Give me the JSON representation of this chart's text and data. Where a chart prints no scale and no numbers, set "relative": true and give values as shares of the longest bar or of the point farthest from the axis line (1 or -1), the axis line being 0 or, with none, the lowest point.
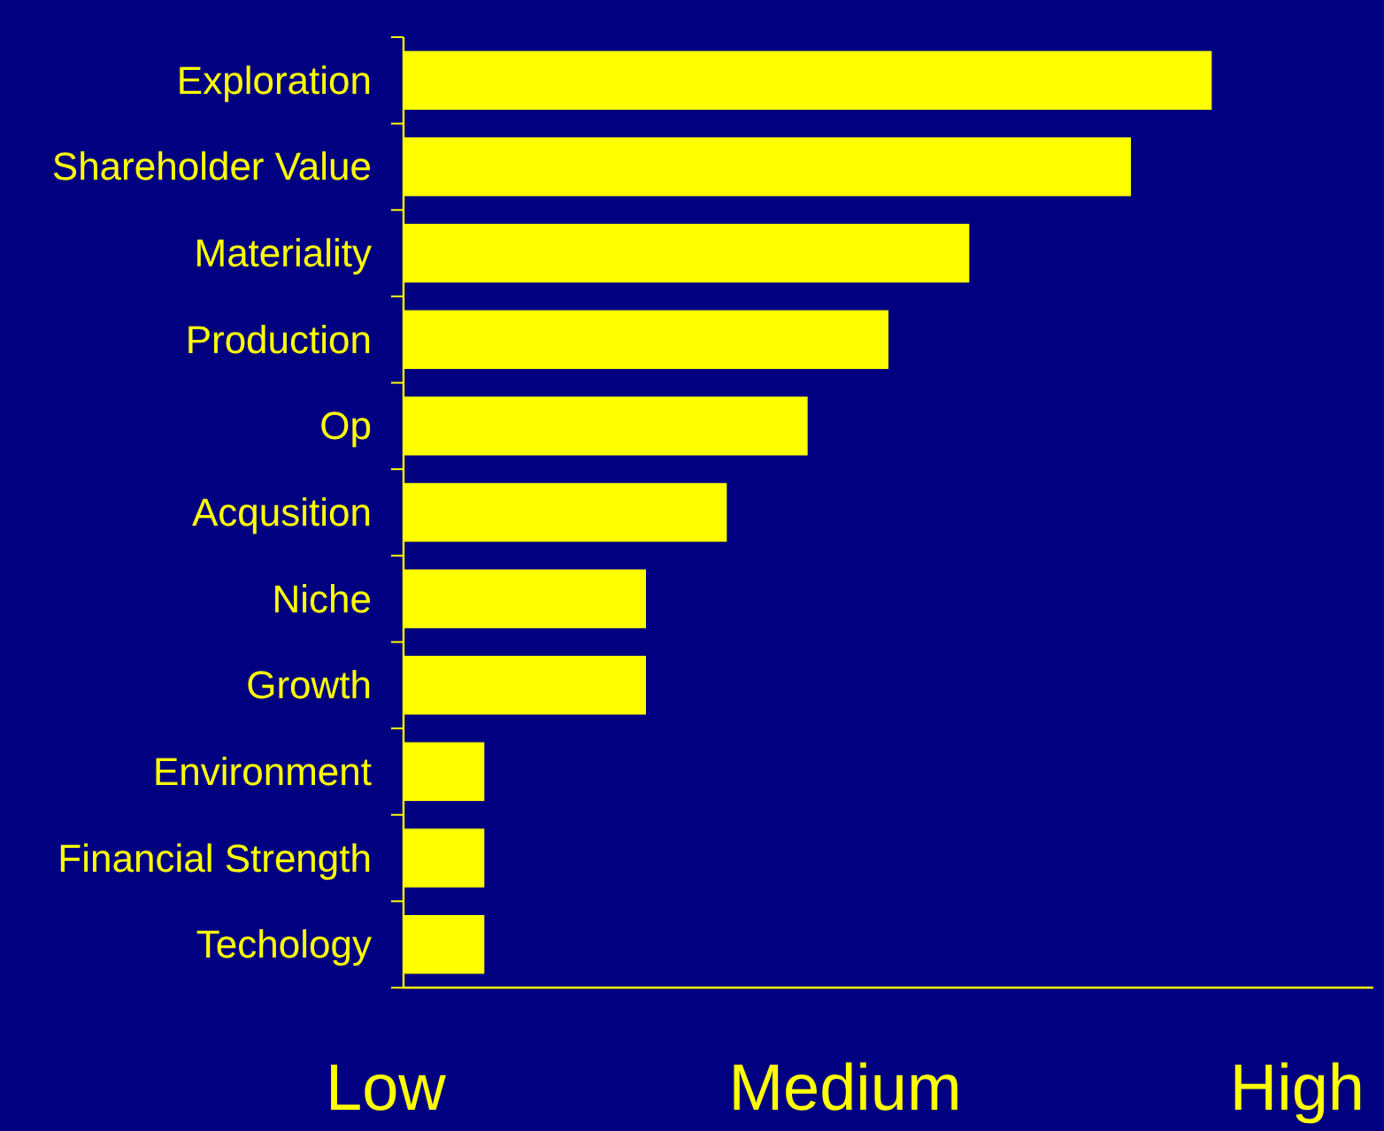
{
  "chart_data": {
    "type": "bar",
    "orientation": "horizontal",
    "relative": true,
    "categories": [
      "Exploration",
      "Shareholder Value",
      "Materiality",
      "Production",
      "Op",
      "Acqusition",
      "Niche",
      "Growth",
      "Environment",
      "Financial Strength",
      "Techology"
    ],
    "values": [
      1,
      0.9,
      0.7,
      0.6,
      0.5,
      0.4,
      0.3,
      0.3,
      0.1,
      0.1,
      0.1
    ],
    "color": "#ffff00",
    "annotations": [
      "Low",
      "Medium",
      "High"
    ]
  }
}
